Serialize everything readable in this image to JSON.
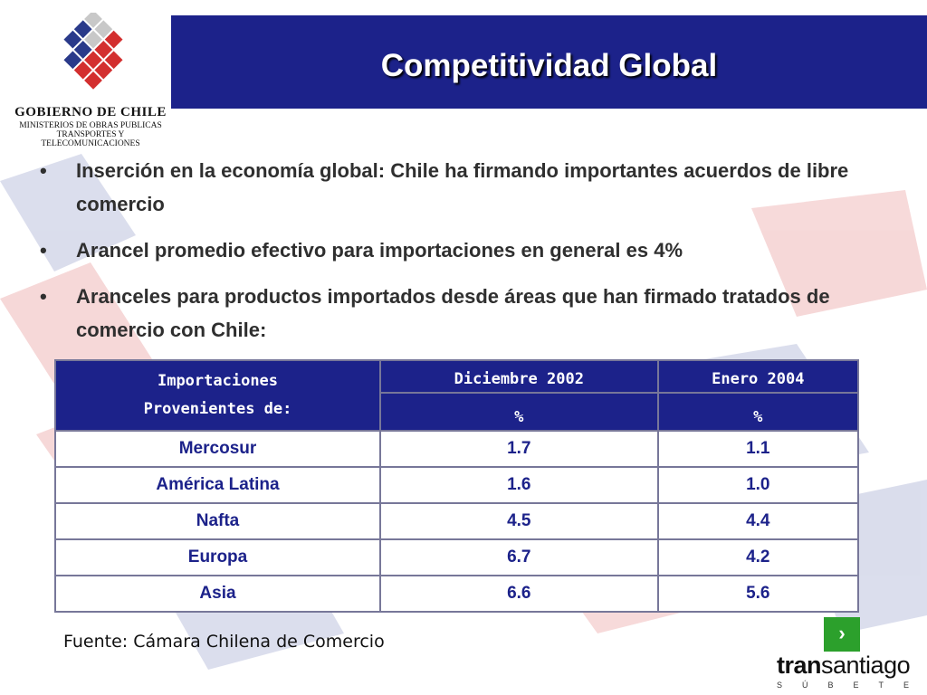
{
  "logo": {
    "line1": "GOBIERNO DE CHILE",
    "line2": "MINISTERIOS DE OBRAS PUBLICAS",
    "line3": "TRANSPORTES Y",
    "line4": "TELECOMUNICACIONES"
  },
  "title": "Competitividad Global",
  "bullets": [
    {
      "marker": "•",
      "text": "Inserción en la economía global: Chile ha firmando importantes acuerdos de libre comercio"
    },
    {
      "marker": "•",
      "text": " Arancel promedio efectivo para importaciones en general es 4%"
    },
    {
      "marker": "•",
      "text": " Aranceles para productos importados desde áreas que han firmado tratados de comercio con Chile:"
    }
  ],
  "table": {
    "header_col1_line1": "Importaciones",
    "header_col1_line2": "Provenientes de:",
    "header_col2": "Diciembre 2002",
    "header_col3": "Enero 2004",
    "unit": "%",
    "rows": [
      {
        "region": "Mercosur",
        "dic2002": "1.7",
        "ene2004": "1.1"
      },
      {
        "region": "América Latina",
        "dic2002": "1.6",
        "ene2004": "1.0"
      },
      {
        "region": "Nafta",
        "dic2002": "4.5",
        "ene2004": "4.4"
      },
      {
        "region": "Europa",
        "dic2002": "6.7",
        "ene2004": "4.2"
      },
      {
        "region": "Asia",
        "dic2002": "6.6",
        "ene2004": "5.6"
      }
    ]
  },
  "source": "Fuente: Cámara Chilena de Comercio",
  "next_button": "›",
  "brand": {
    "bold": "tran",
    "rest": "santiago",
    "tagline": "SÚBETE"
  },
  "colors": {
    "title_bar": "#1c228a",
    "accent_green": "#2ca02c",
    "table_text": "#1c228a"
  }
}
